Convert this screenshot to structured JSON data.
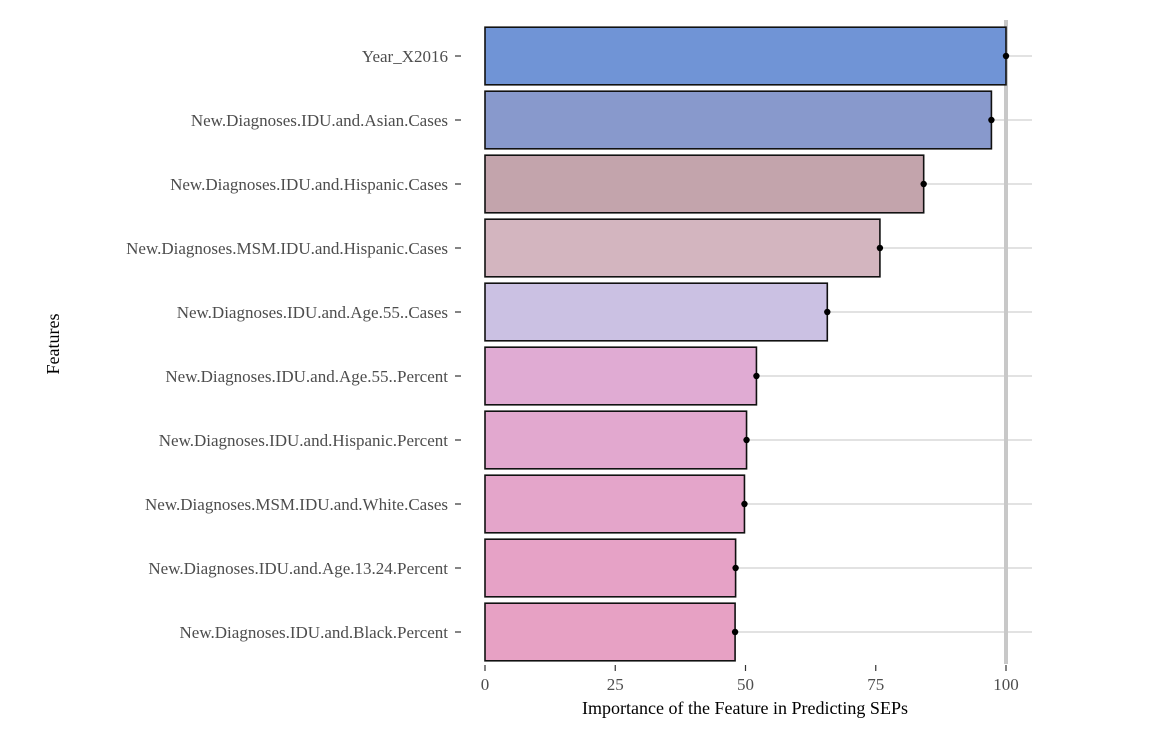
{
  "chart_data": {
    "type": "bar",
    "orientation": "horizontal",
    "xlabel": "Importance of the Feature in Predicting SEPs",
    "ylabel": "Features",
    "xlim": [
      0,
      105
    ],
    "xticks": [
      0,
      25,
      50,
      75,
      100
    ],
    "reference_line": 100,
    "grid": true,
    "categories": [
      "Year_X2016",
      "New.Diagnoses.IDU.and.Asian.Cases",
      "New.Diagnoses.IDU.and.Hispanic.Cases",
      "New.Diagnoses.MSM.IDU.and.Hispanic.Cases",
      "New.Diagnoses.IDU.and.Age.55..Cases",
      "New.Diagnoses.IDU.and.Age.55..Percent",
      "New.Diagnoses.IDU.and.Hispanic.Percent",
      "New.Diagnoses.MSM.IDU.and.White.Cases",
      "New.Diagnoses.IDU.and.Age.13.24.Percent",
      "New.Diagnoses.IDU.and.Black.Percent"
    ],
    "values": [
      100,
      97.2,
      84.2,
      75.8,
      65.7,
      52.1,
      50.2,
      49.8,
      48.1,
      48.0
    ],
    "colors": [
      "#7094d6",
      "#8899cc",
      "#c3a4ac",
      "#d3b5bf",
      "#cbc1e3",
      "#e0abd3",
      "#e2a8cf",
      "#e4a5ca",
      "#e6a2c6",
      "#e7a1c4"
    ]
  }
}
